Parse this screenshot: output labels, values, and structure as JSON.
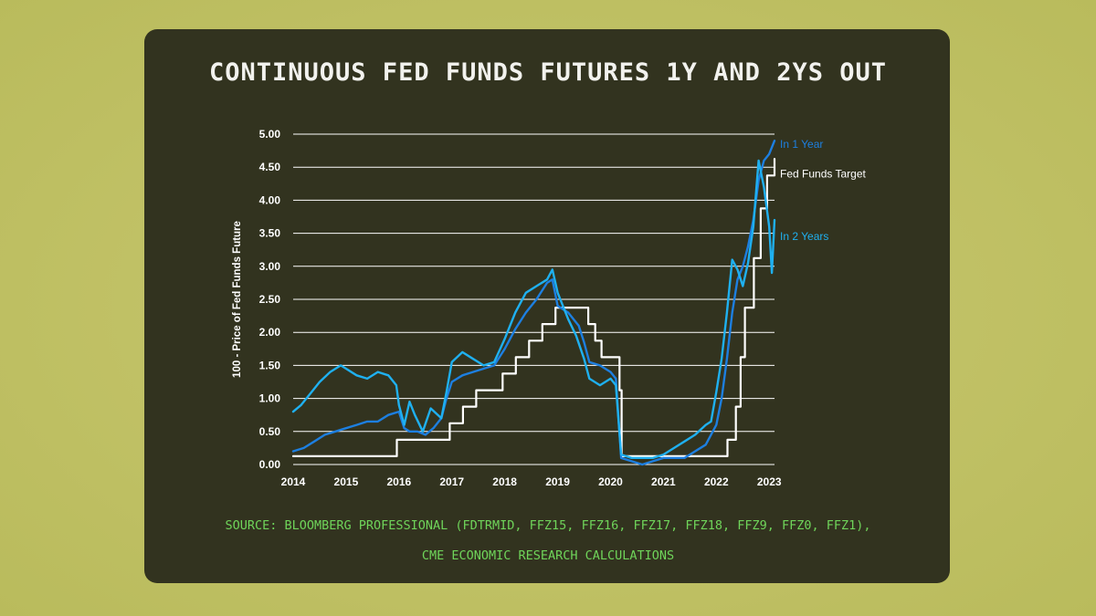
{
  "title": "CONTINUOUS FED FUNDS FUTURES 1Y AND 2YS OUT",
  "source": {
    "line1": "SOURCE: BLOOMBERG PROFESSIONAL (FDTRMID, FFZ15, FFZ16, FFZ17, FFZ18, FFZ9, FFZ0, FFZ1),",
    "line2": "CME ECONOMIC RESEARCH CALCULATIONS"
  },
  "colors": {
    "background": "#b9bb5c",
    "card": "#32331f",
    "grid": "#ffffff",
    "in_1_year": "#1d7fe0",
    "in_2_years": "#1fb0f0",
    "fed_funds_target": "#ffffff",
    "source_text": "#6fd45a"
  },
  "chart_data": {
    "type": "line",
    "title": "CONTINUOUS FED FUNDS FUTURES 1Y AND 2YS OUT",
    "xlabel": "",
    "ylabel": "100 - Price of Fed Funds Future",
    "xlim": [
      2014,
      2023.1
    ],
    "ylim": [
      0,
      5
    ],
    "x_ticks": [
      "2014",
      "2015",
      "2016",
      "2017",
      "2018",
      "2019",
      "2020",
      "2021",
      "2022",
      "2023"
    ],
    "y_ticks": [
      "0.00",
      "0.50",
      "1.00",
      "1.50",
      "2.00",
      "2.50",
      "3.00",
      "3.50",
      "4.00",
      "4.50",
      "5.00"
    ],
    "grid": true,
    "legend": "inline labels at right end of lines",
    "series": [
      {
        "name": "Fed Funds Target",
        "color": "#ffffff",
        "step": true,
        "x": [
          2014.0,
          2015.96,
          2016.96,
          2017.21,
          2017.46,
          2017.96,
          2018.21,
          2018.46,
          2018.71,
          2018.96,
          2019.58,
          2019.71,
          2019.83,
          2020.17,
          2020.21,
          2022.21,
          2022.37,
          2022.46,
          2022.54,
          2022.71,
          2022.84,
          2022.96,
          2023.1
        ],
        "values": [
          0.125,
          0.375,
          0.625,
          0.875,
          1.125,
          1.375,
          1.625,
          1.875,
          2.125,
          2.375,
          2.125,
          1.875,
          1.625,
          1.125,
          0.125,
          0.375,
          0.875,
          1.625,
          2.375,
          3.125,
          3.875,
          4.375,
          4.625
        ]
      },
      {
        "name": "In 1 Year",
        "color": "#1d7fe0",
        "x": [
          2014.0,
          2014.2,
          2014.4,
          2014.6,
          2014.8,
          2015.0,
          2015.2,
          2015.4,
          2015.6,
          2015.8,
          2016.0,
          2016.1,
          2016.2,
          2016.35,
          2016.5,
          2016.65,
          2016.8,
          2016.9,
          2017.0,
          2017.2,
          2017.4,
          2017.6,
          2017.8,
          2018.0,
          2018.2,
          2018.4,
          2018.6,
          2018.8,
          2018.9,
          2019.0,
          2019.2,
          2019.4,
          2019.5,
          2019.6,
          2019.8,
          2020.0,
          2020.1,
          2020.2,
          2020.4,
          2020.6,
          2020.8,
          2021.0,
          2021.2,
          2021.4,
          2021.6,
          2021.8,
          2022.0,
          2022.1,
          2022.2,
          2022.3,
          2022.4,
          2022.5,
          2022.6,
          2022.7,
          2022.8,
          2022.9,
          2023.0,
          2023.1
        ],
        "values": [
          0.2,
          0.25,
          0.35,
          0.45,
          0.5,
          0.55,
          0.6,
          0.65,
          0.65,
          0.75,
          0.8,
          0.55,
          0.5,
          0.5,
          0.45,
          0.55,
          0.7,
          1.0,
          1.25,
          1.35,
          1.4,
          1.45,
          1.5,
          1.75,
          2.05,
          2.3,
          2.5,
          2.75,
          2.8,
          2.4,
          2.3,
          2.1,
          1.85,
          1.55,
          1.5,
          1.4,
          1.3,
          0.1,
          0.05,
          0.0,
          0.05,
          0.1,
          0.1,
          0.1,
          0.2,
          0.3,
          0.6,
          1.0,
          1.6,
          2.3,
          2.8,
          3.0,
          3.3,
          3.7,
          4.3,
          4.6,
          4.7,
          4.9
        ]
      },
      {
        "name": "In 2 Years",
        "color": "#1fb0f0",
        "x": [
          2014.0,
          2014.15,
          2014.3,
          2014.5,
          2014.7,
          2014.9,
          2015.0,
          2015.2,
          2015.4,
          2015.6,
          2015.8,
          2015.95,
          2016.0,
          2016.1,
          2016.2,
          2016.3,
          2016.45,
          2016.6,
          2016.8,
          2016.9,
          2017.0,
          2017.2,
          2017.4,
          2017.6,
          2017.8,
          2018.0,
          2018.2,
          2018.4,
          2018.6,
          2018.8,
          2018.9,
          2019.0,
          2019.2,
          2019.35,
          2019.5,
          2019.6,
          2019.8,
          2020.0,
          2020.1,
          2020.2,
          2020.4,
          2020.6,
          2020.8,
          2021.0,
          2021.2,
          2021.4,
          2021.6,
          2021.8,
          2021.9,
          2022.0,
          2022.1,
          2022.2,
          2022.3,
          2022.4,
          2022.5,
          2022.6,
          2022.7,
          2022.8,
          2022.9,
          2023.0,
          2023.05,
          2023.1
        ],
        "values": [
          0.8,
          0.9,
          1.05,
          1.25,
          1.4,
          1.5,
          1.45,
          1.35,
          1.3,
          1.4,
          1.35,
          1.2,
          0.9,
          0.6,
          0.95,
          0.75,
          0.5,
          0.85,
          0.7,
          1.1,
          1.55,
          1.7,
          1.6,
          1.5,
          1.55,
          1.9,
          2.3,
          2.6,
          2.7,
          2.8,
          2.95,
          2.6,
          2.2,
          1.95,
          1.6,
          1.3,
          1.2,
          1.3,
          1.2,
          0.15,
          0.1,
          0.1,
          0.1,
          0.15,
          0.25,
          0.35,
          0.45,
          0.6,
          0.65,
          1.1,
          1.6,
          2.3,
          3.1,
          2.95,
          2.7,
          3.05,
          3.6,
          4.6,
          4.2,
          3.6,
          2.9,
          3.7
        ]
      }
    ]
  }
}
